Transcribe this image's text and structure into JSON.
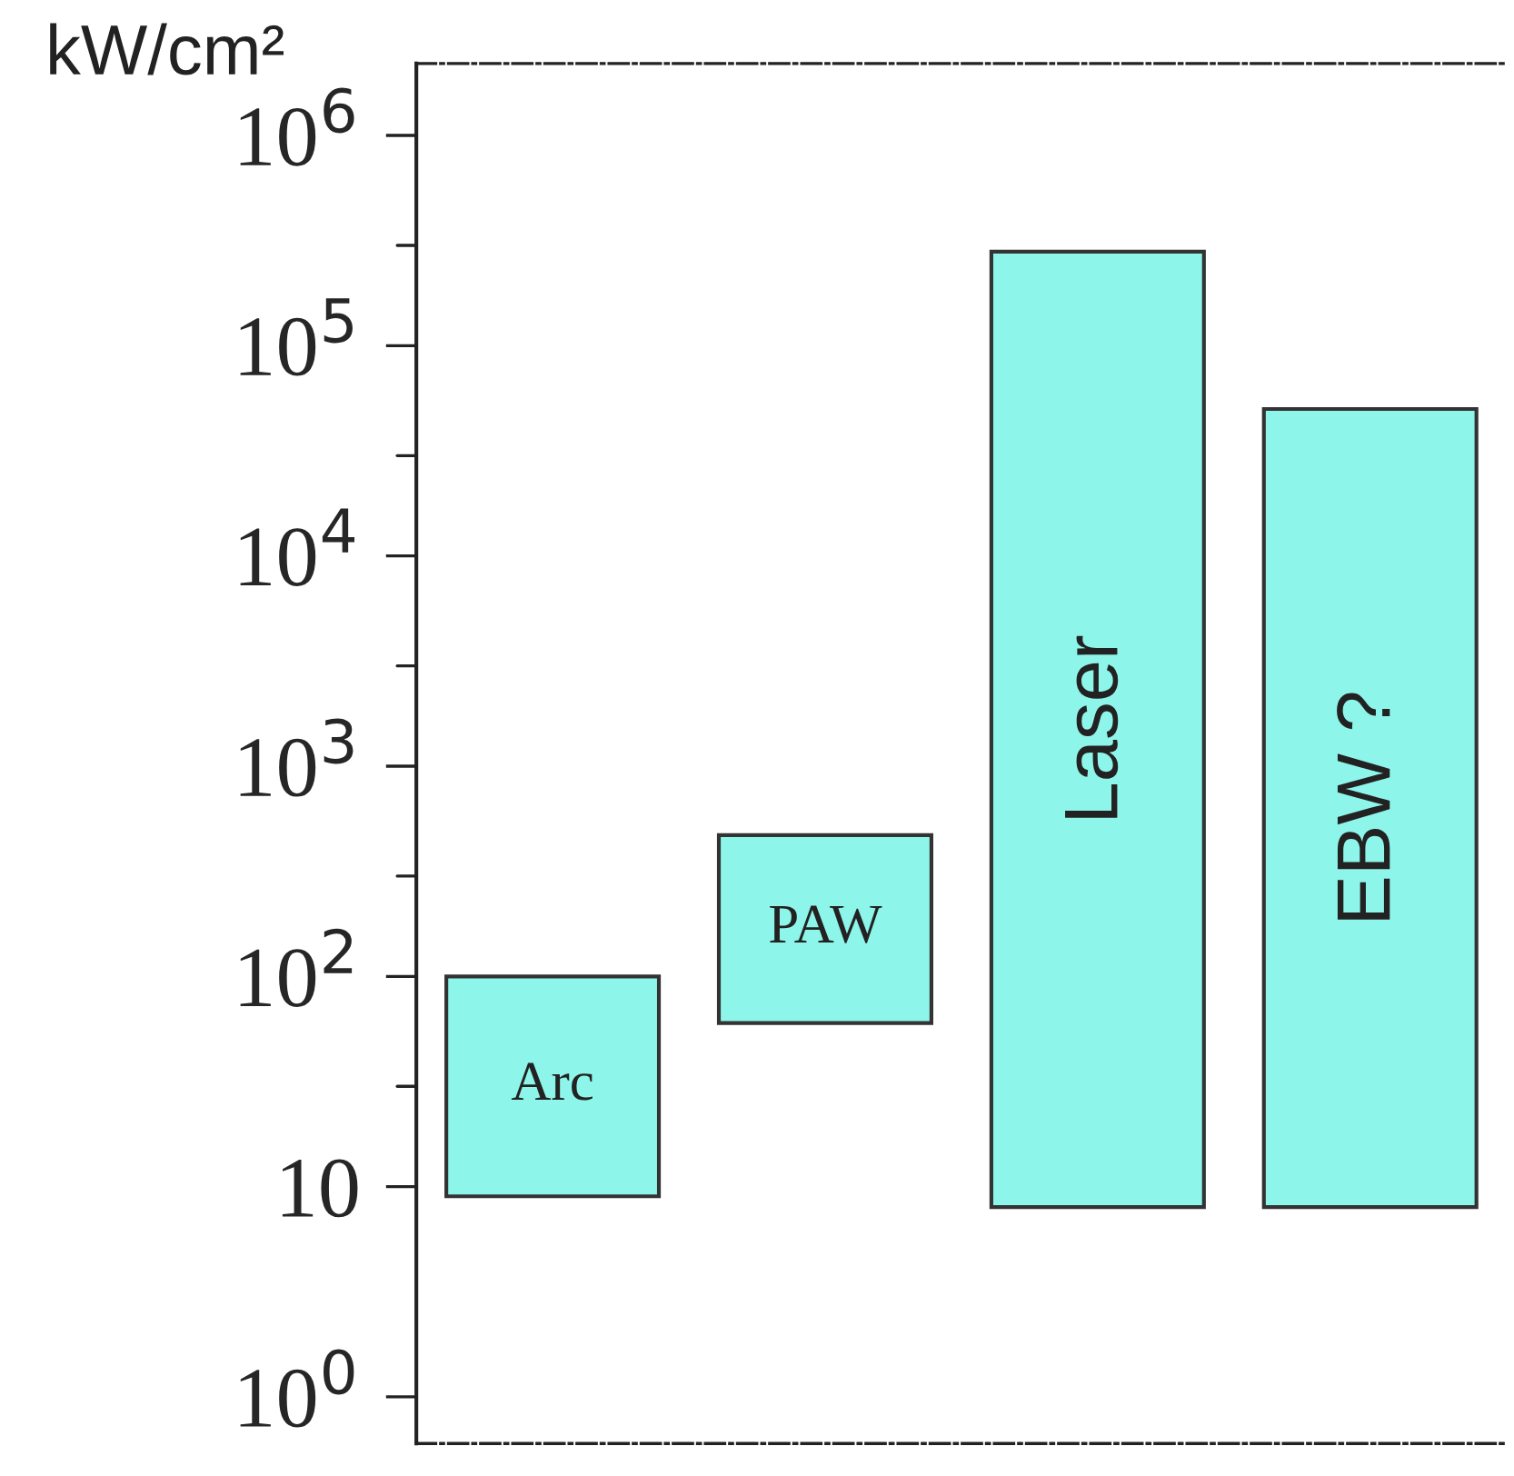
{
  "chart_data": {
    "type": "bar",
    "ylabel": "kW/cm²",
    "categories": [
      "Arc",
      "PAW",
      "Laser",
      "EBW ?"
    ],
    "values": [
      91,
      410,
      280000,
      50000
    ],
    "base": [
      9,
      60,
      8,
      8
    ],
    "color": "#8ef5ea",
    "log": "y",
    "ylim": [
      0.6,
      2200000
    ],
    "yticks": [
      {
        "value": 1,
        "label": "10$^{0}$"
      },
      10,
      {
        "value": 30,
        "label": null
      },
      {
        "value": 100,
        "label": "10$^{2}$"
      },
      {
        "value": 300,
        "label": null
      },
      {
        "value": 1000,
        "label": "10$^{3}$"
      },
      {
        "value": 3000,
        "label": null
      },
      {
        "value": 10000,
        "label": "10$^{4}$"
      },
      {
        "value": 30000,
        "label": null
      },
      {
        "value": 100000,
        "label": "10$^{5}$"
      },
      {
        "value": 300000,
        "label": null
      },
      {
        "value": 1000000,
        "label": "10$^{6}$"
      }
    ],
    "tick_labels": "y",
    "grid": false
  }
}
